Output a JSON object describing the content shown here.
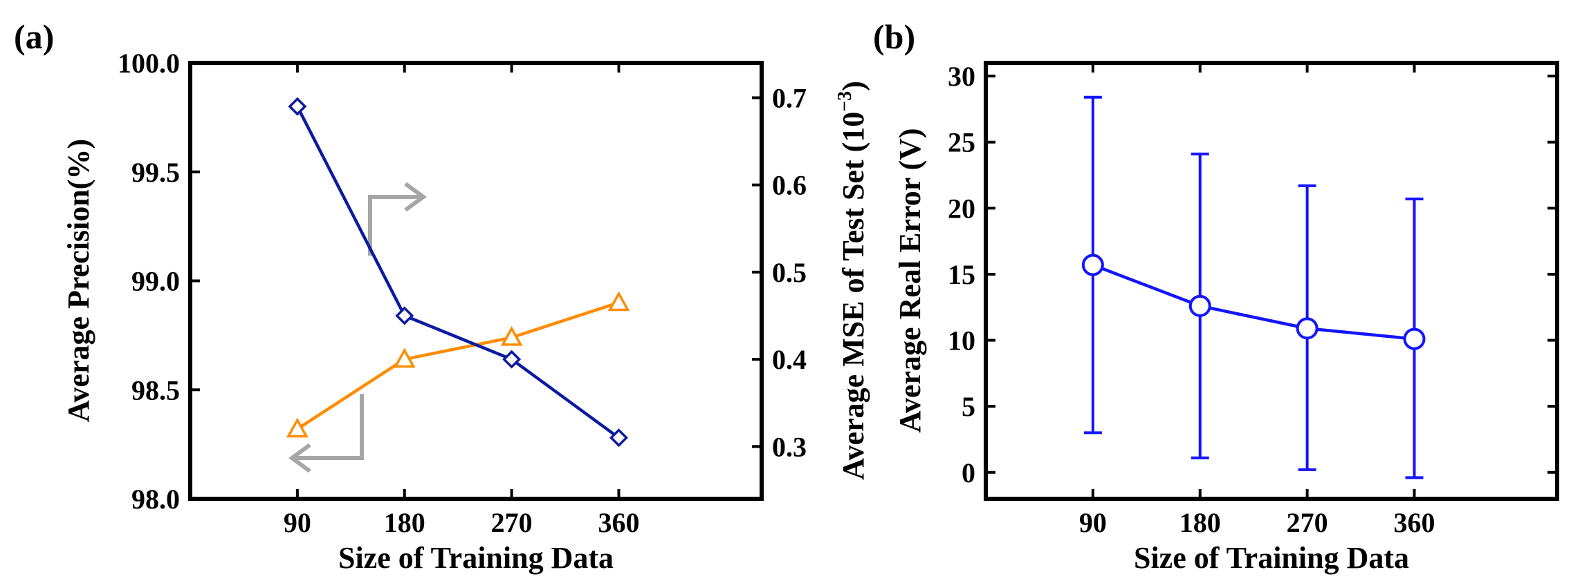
{
  "chart_data": [
    {
      "panel_label": "(a)",
      "type": "line",
      "xlabel": "Size of Training Data",
      "ylabel_left": "Average Precision(%)",
      "ylabel_right": "Average MSE of Test Set (10",
      "ylabel_right_exp": "−3",
      "ylabel_right_close": ")",
      "categories": [
        90,
        180,
        270,
        360
      ],
      "xlim": [
        0,
        480
      ],
      "ylim_left": [
        98.0,
        100.0
      ],
      "ylim_right": [
        0.24,
        0.74
      ],
      "xticks": [
        "90",
        "180",
        "270",
        "360"
      ],
      "yticks_left": [
        "98.0",
        "98.5",
        "99.0",
        "99.5",
        "100.0"
      ],
      "yticks_right": [
        "0.3",
        "0.4",
        "0.5",
        "0.6",
        "0.7"
      ],
      "series": [
        {
          "name": "Average Precision",
          "axis": "left",
          "marker": "triangle",
          "color": "#ff8c00",
          "values": [
            98.32,
            98.64,
            98.74,
            98.9
          ]
        },
        {
          "name": "Average MSE of Test Set",
          "axis": "right",
          "marker": "diamond",
          "color": "#0b1aa0",
          "values": [
            0.69,
            0.45,
            0.4,
            0.31
          ]
        }
      ],
      "annotations": [
        {
          "kind": "arrow",
          "direction": "right",
          "meaning": "diamond series uses right axis",
          "color": "#a6a6a6"
        },
        {
          "kind": "arrow",
          "direction": "left",
          "meaning": "triangle series uses left axis",
          "color": "#a6a6a6"
        }
      ]
    },
    {
      "panel_label": "(b)",
      "type": "line",
      "xlabel": "Size of Training Data",
      "ylabel": "Average Real Error (V)",
      "categories": [
        90,
        180,
        270,
        360
      ],
      "xlim": [
        0,
        480
      ],
      "ylim": [
        -2,
        31
      ],
      "xticks": [
        "90",
        "180",
        "270",
        "360"
      ],
      "yticks": [
        "0",
        "5",
        "10",
        "15",
        "20",
        "25",
        "30"
      ],
      "series": [
        {
          "name": "Average Real Error",
          "marker": "circle",
          "color": "#1414ff",
          "values": [
            15.7,
            12.6,
            10.9,
            10.1
          ],
          "error_low": [
            3.0,
            1.1,
            0.2,
            -0.4
          ],
          "error_high": [
            28.4,
            24.1,
            21.7,
            20.7
          ]
        }
      ]
    }
  ]
}
